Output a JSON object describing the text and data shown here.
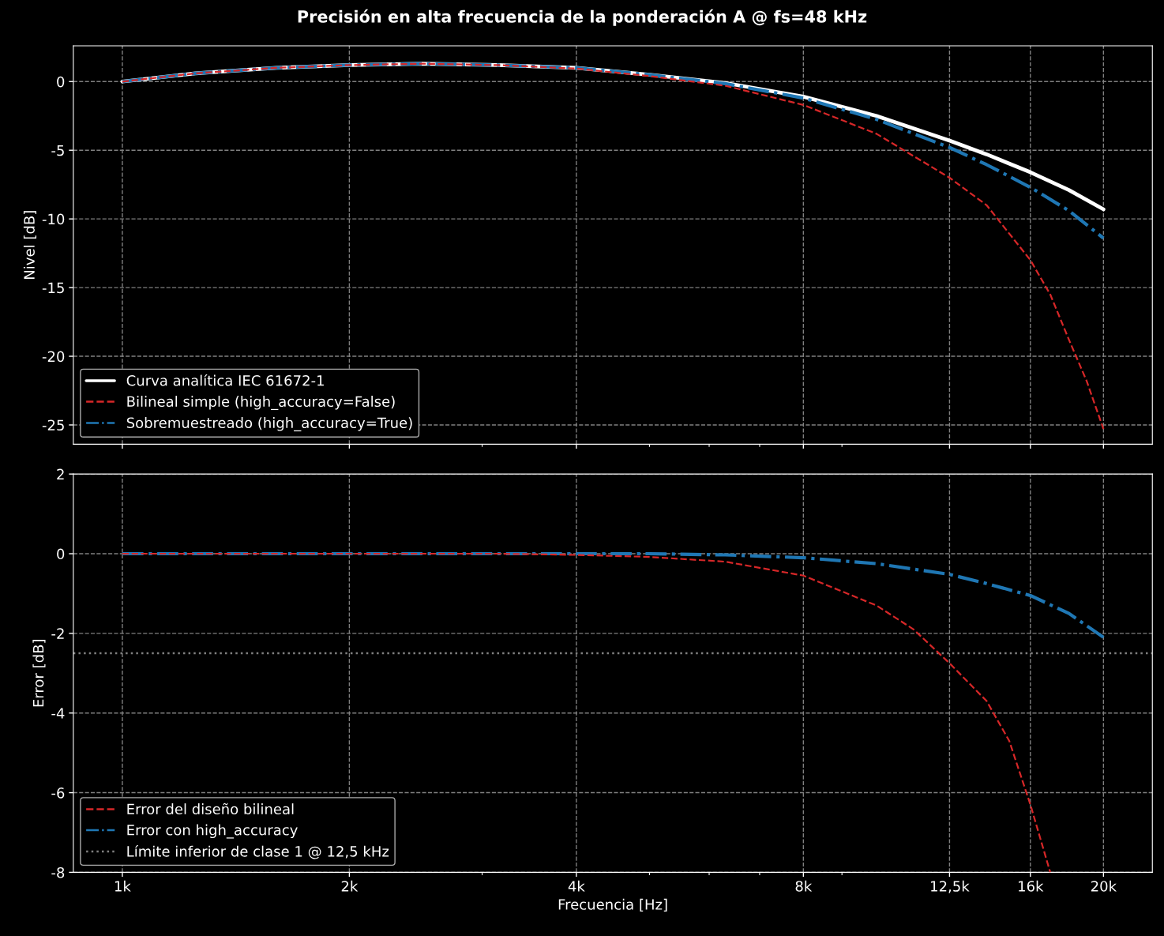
{
  "chart_data": [
    {
      "type": "line",
      "title": "Precisión en alta frecuencia de la ponderación A @ fs=48 kHz",
      "ylabel": "Nivel [dB]",
      "log": "x",
      "grid": true,
      "legend": "lower left",
      "tick_labels": "y",
      "xlim": [
        861,
        23220
      ],
      "ylim": [
        -26.4,
        2.6
      ],
      "xticks": [
        1000,
        2000,
        4000,
        8000,
        12500,
        16000,
        20000,
        {
          "value": 3000,
          "label": null
        },
        {
          "value": 5000,
          "label": null
        },
        {
          "value": 6000,
          "label": null
        },
        {
          "value": 7000,
          "label": null
        },
        {
          "value": 9000,
          "label": null
        }
      ],
      "yticks": [
        {
          "value": 0,
          "label": "0"
        },
        {
          "value": -5,
          "label": "-5"
        },
        {
          "value": -10,
          "label": "-10"
        },
        {
          "value": -15,
          "label": "-15"
        },
        {
          "value": -20,
          "label": "-20"
        },
        {
          "value": -25,
          "label": "-25"
        }
      ],
      "series": [
        {
          "name": "Curva analítica IEC 61672-1",
          "color": "#ffffff",
          "line_style": "solid",
          "x": [
            1000,
            1250,
            1600,
            2000,
            2500,
            3150,
            4000,
            5000,
            6300,
            8000,
            10000,
            12500,
            14000,
            16000,
            18000,
            20000
          ],
          "values": [
            0,
            0.6,
            1.0,
            1.2,
            1.3,
            1.2,
            1.0,
            0.5,
            -0.1,
            -1.1,
            -2.5,
            -4.3,
            -5.3,
            -6.6,
            -7.9,
            -9.3
          ]
        },
        {
          "name": "Bilineal simple (high_accuracy=False)",
          "color": "#d62728",
          "line_style": "dashed",
          "x": [
            1000,
            1250,
            1600,
            2000,
            2500,
            3150,
            4000,
            5000,
            6300,
            8000,
            10000,
            12500,
            14000,
            16000,
            17000,
            18000,
            19000,
            20000
          ],
          "values": [
            0,
            0.6,
            1.0,
            1.2,
            1.3,
            1.2,
            0.95,
            0.4,
            -0.3,
            -1.7,
            -3.8,
            -7.0,
            -9.0,
            -13.0,
            -15.5,
            -18.8,
            -21.8,
            -25.3
          ]
        },
        {
          "name": "Sobremuestreado (high_accuracy=True)",
          "color": "#1f77b4",
          "line_style": "dashdot",
          "x": [
            1000,
            1250,
            1600,
            2000,
            2500,
            3150,
            4000,
            5000,
            6300,
            8000,
            10000,
            12500,
            14000,
            16000,
            18000,
            20000
          ],
          "values": [
            0,
            0.6,
            1.0,
            1.2,
            1.3,
            1.2,
            1.0,
            0.5,
            -0.15,
            -1.2,
            -2.75,
            -4.8,
            -6.05,
            -7.7,
            -9.4,
            -11.4
          ]
        }
      ]
    },
    {
      "type": "line",
      "xlabel": "Frecuencia [Hz]",
      "ylabel": "Error [dB]",
      "log": "x",
      "grid": true,
      "legend": "lower left",
      "xlim": [
        861,
        23220
      ],
      "ylim": [
        -8,
        2
      ],
      "xticks": [
        {
          "value": 1000,
          "label": "1k"
        },
        {
          "value": 2000,
          "label": "2k"
        },
        {
          "value": 4000,
          "label": "4k"
        },
        {
          "value": 8000,
          "label": "8k"
        },
        {
          "value": 12500,
          "label": "12,5k"
        },
        {
          "value": 16000,
          "label": "16k"
        },
        {
          "value": 20000,
          "label": "20k"
        },
        {
          "value": 3000,
          "label": null
        },
        {
          "value": 5000,
          "label": null
        },
        {
          "value": 6000,
          "label": null
        },
        {
          "value": 7000,
          "label": null
        },
        {
          "value": 9000,
          "label": null
        }
      ],
      "yticks": [
        {
          "value": -8,
          "label": "-8"
        },
        {
          "value": -6,
          "label": "-6"
        },
        {
          "value": -4,
          "label": "-4"
        },
        {
          "value": -2,
          "label": "-2"
        },
        {
          "value": 0,
          "label": "0"
        },
        {
          "value": 2,
          "label": "2"
        }
      ],
      "series": [
        {
          "name": "Error del diseño bilineal",
          "color": "#d62728",
          "line_style": "dashed",
          "x": [
            1000,
            2000,
            3150,
            4000,
            5000,
            6300,
            8000,
            10000,
            11200,
            12500,
            14000,
            15000,
            16000,
            17000
          ],
          "values": [
            0,
            0,
            0,
            -0.03,
            -0.08,
            -0.2,
            -0.55,
            -1.3,
            -1.9,
            -2.75,
            -3.7,
            -4.7,
            -6.3,
            -8.0
          ]
        },
        {
          "name": "Error con high_accuracy",
          "color": "#1f77b4",
          "line_style": "dashdot",
          "x": [
            1000,
            2000,
            3150,
            4000,
            5000,
            6300,
            8000,
            10000,
            12500,
            14000,
            16000,
            18000,
            20000
          ],
          "values": [
            0,
            0,
            0,
            0,
            0,
            -0.03,
            -0.1,
            -0.25,
            -0.52,
            -0.75,
            -1.05,
            -1.5,
            -2.1
          ]
        }
      ],
      "ref_lines": [
        {
          "axis": "y",
          "value": -2.5,
          "label": "Límite inferior de clase 1 @ 12,5 kHz",
          "color": "#808080",
          "line_style": "dotted"
        }
      ]
    }
  ]
}
